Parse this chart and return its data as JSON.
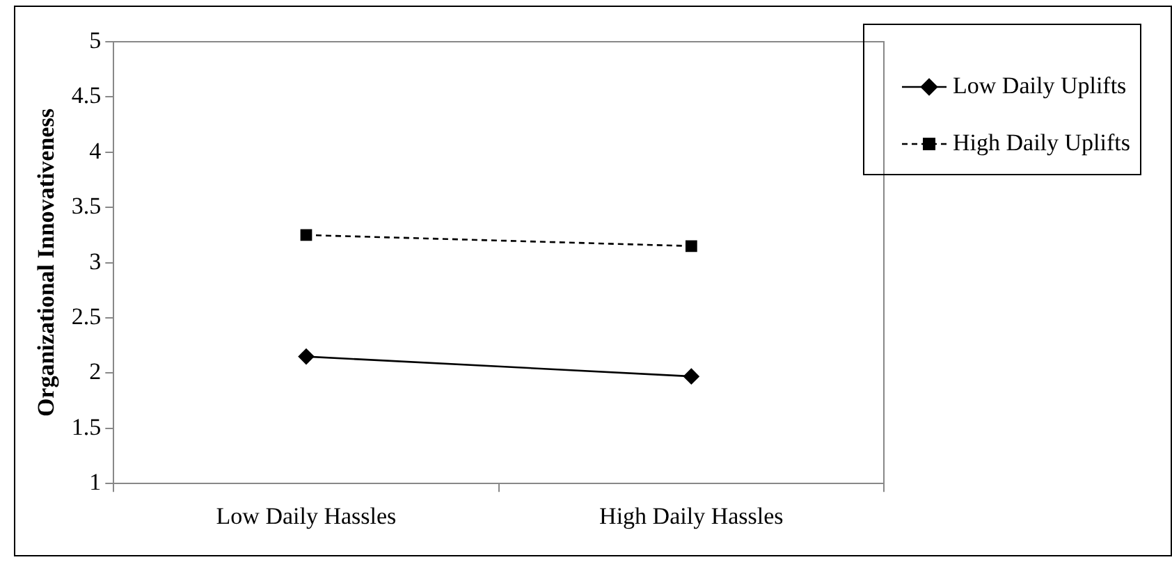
{
  "chart_data": {
    "type": "line",
    "ylabel": "Organizational Innovativeness",
    "categories": [
      "Low Daily Hassles",
      "High Daily Hassles"
    ],
    "series": [
      {
        "name": "Low Daily Uplifts",
        "color": "#000000",
        "values": [
          2.15,
          1.97
        ],
        "marker": "diamond",
        "line_style": "solid"
      },
      {
        "name": "High Daily Uplifts",
        "color": "#000000",
        "values": [
          3.25,
          3.15
        ],
        "marker": "square",
        "line_style": "dashed"
      }
    ],
    "ylim": [
      1,
      5
    ],
    "yticks": [
      1,
      1.5,
      2,
      2.5,
      3,
      3.5,
      4,
      4.5,
      5
    ],
    "grid": false,
    "legend": "top right"
  }
}
